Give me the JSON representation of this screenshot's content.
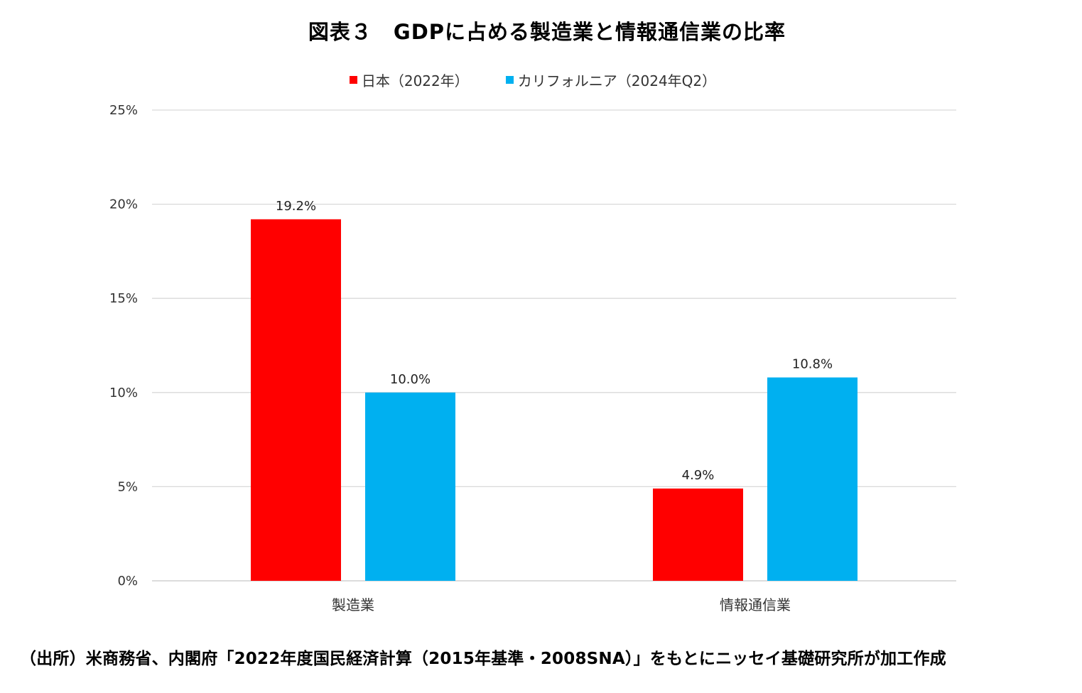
{
  "chart_data": {
    "type": "bar",
    "title": "図表３　GDPに占める製造業と情報通信業の比率",
    "categories": [
      "製造業",
      "情報通信業"
    ],
    "series": [
      {
        "name": "日本（2022年）",
        "color": "#ff0000",
        "values": [
          19.2,
          4.9
        ],
        "labels": [
          "19.2%",
          "4.9%"
        ]
      },
      {
        "name": "カリフォルニア（2024年Q2）",
        "color": "#00b0f0",
        "values": [
          10.0,
          10.8
        ],
        "labels": [
          "10.0%",
          "10.8%"
        ]
      }
    ],
    "ylim": [
      0,
      25
    ],
    "yticks": [
      0,
      5,
      10,
      15,
      20,
      25
    ],
    "ytick_labels": [
      "0%",
      "5%",
      "10%",
      "15%",
      "20%",
      "25%"
    ],
    "xlabel": "",
    "ylabel": "",
    "grid": true,
    "legend": "top-center"
  },
  "source": "（出所）米商務省、内閣府「2022年度国民経済計算（2015年基準・2008SNA）」をもとにニッセイ基礎研究所が加工作成"
}
